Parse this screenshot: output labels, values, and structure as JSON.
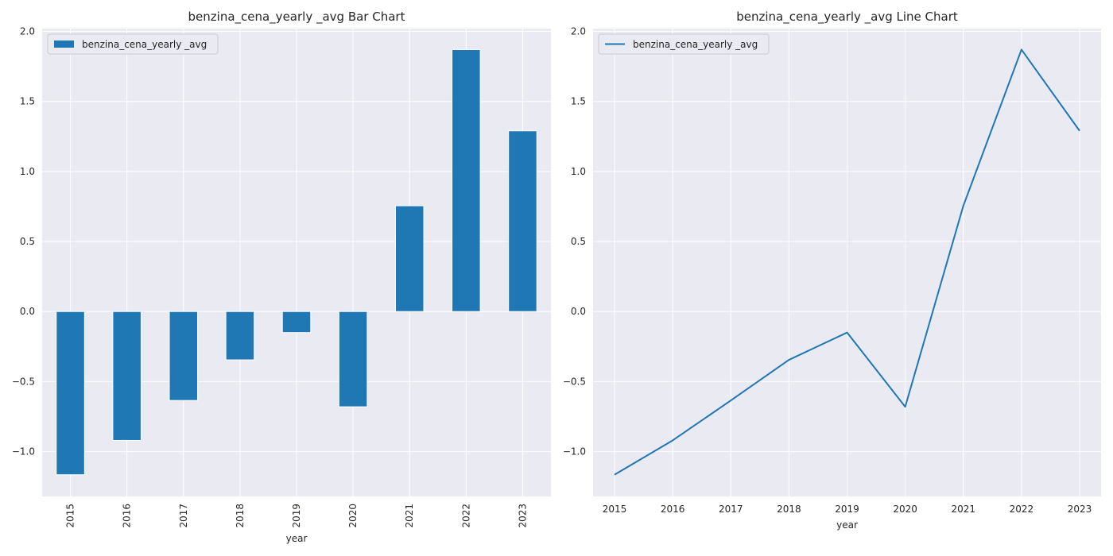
{
  "chart_data": [
    {
      "type": "bar",
      "title": "benzina_cena_yearly _avg Bar Chart",
      "xlabel": "year",
      "ylabel": "",
      "categories": [
        "2015",
        "2016",
        "2017",
        "2018",
        "2019",
        "2020",
        "2021",
        "2022",
        "2023"
      ],
      "series": [
        {
          "name": "benzina_cena_yearly _avg",
          "values": [
            -1.165,
            -0.92,
            -0.635,
            -0.345,
            -0.15,
            -0.68,
            0.755,
            1.87,
            1.29
          ]
        }
      ],
      "ylim": [
        -1.32,
        2.02
      ],
      "yticks": [
        "−1.0",
        "−0.5",
        "0.0",
        "0.5",
        "1.0",
        "1.5",
        "2.0"
      ],
      "ytick_values": [
        -1.0,
        -0.5,
        0.0,
        0.5,
        1.0,
        1.5,
        2.0
      ],
      "grid": true,
      "legend": "upper-left",
      "color": "#1f77b4",
      "xtick_rotation": "vertical"
    },
    {
      "type": "line",
      "title": "benzina_cena_yearly _avg Line Chart",
      "xlabel": "year",
      "ylabel": "",
      "x": [
        "2015",
        "2016",
        "2017",
        "2018",
        "2019",
        "2020",
        "2021",
        "2022",
        "2023"
      ],
      "series": [
        {
          "name": "benzina_cena_yearly _avg",
          "values": [
            -1.165,
            -0.92,
            -0.635,
            -0.345,
            -0.15,
            -0.68,
            0.755,
            1.87,
            1.29
          ]
        }
      ],
      "ylim": [
        -1.32,
        2.02
      ],
      "yticks": [
        "−1.0",
        "−0.5",
        "0.0",
        "0.5",
        "1.0",
        "1.5",
        "2.0"
      ],
      "ytick_values": [
        -1.0,
        -0.5,
        0.0,
        0.5,
        1.0,
        1.5,
        2.0
      ],
      "grid": true,
      "legend": "upper-left",
      "color": "#1f77b4",
      "xtick_rotation": "horizontal"
    }
  ]
}
